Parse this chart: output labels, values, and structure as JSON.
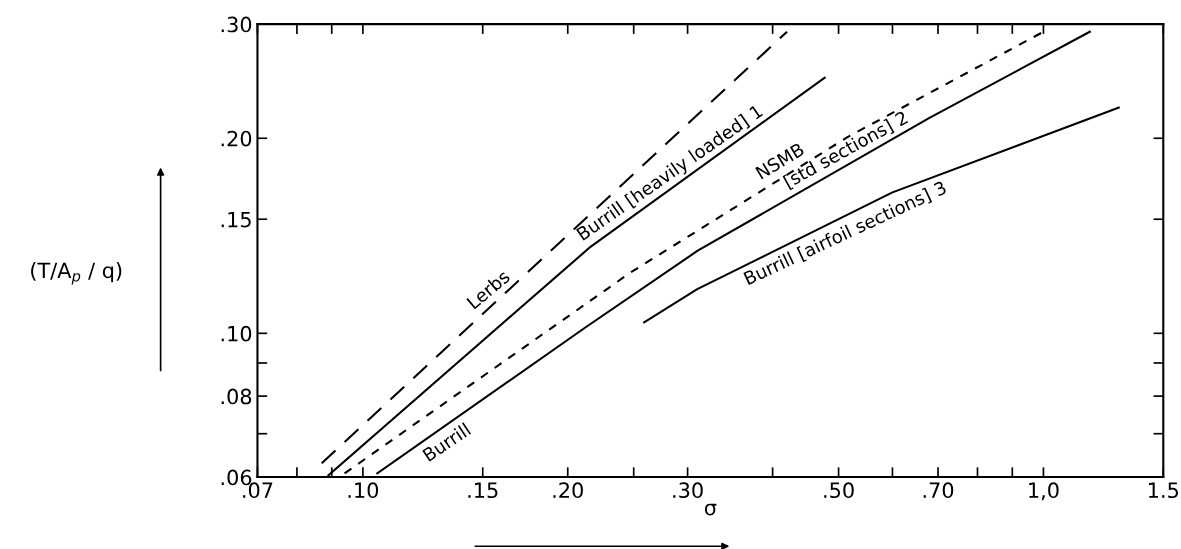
{
  "chart_data": {
    "type": "line",
    "xlabel": "σ",
    "ylabel": "(T/A$_{p}$ / q)",
    "log": "xy",
    "grid": false,
    "legend": false,
    "marker": "none",
    "xlim": [
      0.07,
      1.5
    ],
    "ylim": [
      0.06,
      0.3
    ],
    "xticks": [
      {
        "value": 0.07,
        "label": ".07"
      },
      {
        "value": 0.08,
        "label": null
      },
      {
        "value": 0.09,
        "label": null
      },
      {
        "value": 0.1,
        "label": ".10"
      },
      {
        "value": 0.15,
        "label": ".15"
      },
      {
        "value": 0.2,
        "label": ".20"
      },
      {
        "value": 0.25,
        "label": null
      },
      {
        "value": 0.3,
        "label": ".30"
      },
      {
        "value": 0.4,
        "label": null
      },
      {
        "value": 0.5,
        "label": ".50"
      },
      {
        "value": 0.6,
        "label": null
      },
      {
        "value": 0.7,
        "label": ".70"
      },
      {
        "value": 0.8,
        "label": null
      },
      {
        "value": 0.9,
        "label": null
      },
      {
        "value": 1.0,
        "label": "1,0"
      },
      1.5
    ],
    "yticks": [
      {
        "value": 0.06,
        "label": ".06"
      },
      {
        "value": 0.07,
        "label": null
      },
      {
        "value": 0.08,
        "label": ".08"
      },
      {
        "value": 0.09,
        "label": null
      },
      {
        "value": 0.1,
        "label": ".10"
      },
      {
        "value": 0.15,
        "label": ".15"
      },
      {
        "value": 0.2,
        "label": ".20"
      },
      {
        "value": 0.3,
        "label": ".30"
      }
    ],
    "series": [
      {
        "color": "#000000",
        "line_style": "dashed",
        "x": [
          0.087,
          0.42
        ],
        "values": [
          0.063,
          0.292
        ]
      },
      {
        "color": "#000000",
        "line_style": "solid",
        "x": [
          0.089,
          0.216,
          0.477
        ],
        "values": [
          0.0604,
          0.136,
          0.248
        ]
      },
      {
        "color": "#000000",
        "line_style": "dotted",
        "x": [
          0.094,
          0.247,
          0.516,
          1.0
        ],
        "values": [
          0.0608,
          0.124,
          0.201,
          0.292
        ]
      },
      {
        "color": "#000000",
        "line_style": "solid",
        "x": [
          0.105,
          0.212,
          0.31,
          0.68,
          1.17
        ],
        "values": [
          0.0608,
          0.102,
          0.134,
          0.215,
          0.292
        ]
      },
      {
        "color": "#000000",
        "line_style": "solid",
        "x": [
          0.259,
          0.31,
          0.6,
          1.29
        ],
        "values": [
          0.104,
          0.117,
          0.165,
          0.223
        ]
      }
    ],
    "annotations": [
      {
        "text": "Lerbs",
        "x": 0.158,
        "y": 0.112
      },
      {
        "text": "Burrill [heavily loaded] 1",
        "x": 0.29,
        "y": 0.17
      },
      {
        "text": "NSMB",
        "x": 0.421,
        "y": 0.176
      },
      {
        "text": "[std sections] 2",
        "x": 0.524,
        "y": 0.184
      },
      {
        "text": "Burrill",
        "x": 0.129,
        "y": 0.071
      },
      {
        "text": "Burrill [airfoil sections] 3",
        "x": 0.5,
        "y": 0.15
      }
    ]
  }
}
